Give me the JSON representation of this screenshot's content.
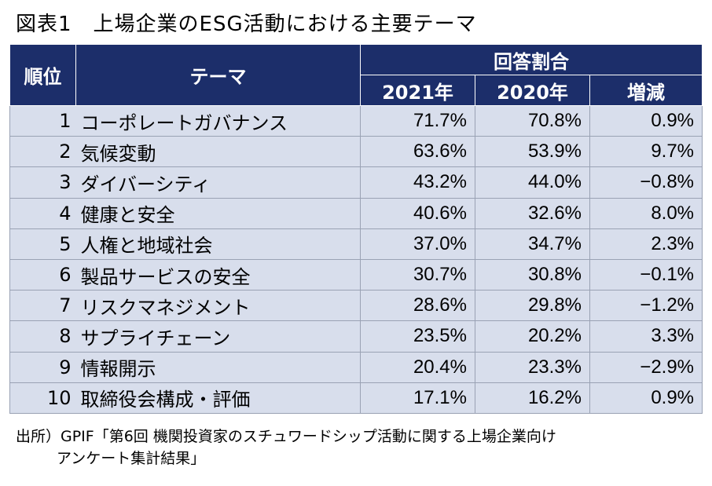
{
  "title": "図表1　上場企業のESG活動における主要テーマ",
  "table": {
    "headers": {
      "rank": "順位",
      "theme": "テーマ",
      "group": "回答割合",
      "col_2021": "2021年",
      "col_2020": "2020年",
      "col_diff": "増減"
    },
    "rows": [
      {
        "rank": "1",
        "theme": "コーポレートガバナンス",
        "v2021": "71.7%",
        "v2020": "70.8%",
        "diff": "0.9%"
      },
      {
        "rank": "2",
        "theme": "気候変動",
        "v2021": "63.6%",
        "v2020": "53.9%",
        "diff": "9.7%"
      },
      {
        "rank": "3",
        "theme": "ダイバーシティ",
        "v2021": "43.2%",
        "v2020": "44.0%",
        "diff": "−0.8%"
      },
      {
        "rank": "4",
        "theme": "健康と安全",
        "v2021": "40.6%",
        "v2020": "32.6%",
        "diff": "8.0%"
      },
      {
        "rank": "5",
        "theme": "人権と地域社会",
        "v2021": "37.0%",
        "v2020": "34.7%",
        "diff": "2.3%"
      },
      {
        "rank": "6",
        "theme": "製品サービスの安全",
        "v2021": "30.7%",
        "v2020": "30.8%",
        "diff": "−0.1%"
      },
      {
        "rank": "7",
        "theme": "リスクマネジメント",
        "v2021": "28.6%",
        "v2020": "29.8%",
        "diff": "−1.2%"
      },
      {
        "rank": "8",
        "theme": "サプライチェーン",
        "v2021": "23.5%",
        "v2020": "20.2%",
        "diff": "3.3%"
      },
      {
        "rank": "9",
        "theme": "情報開示",
        "v2021": "20.4%",
        "v2020": "23.3%",
        "diff": "−2.9%"
      },
      {
        "rank": "10",
        "theme": "取締役会構成・評価",
        "v2021": "17.1%",
        "v2020": "16.2%",
        "diff": "0.9%"
      }
    ]
  },
  "source": {
    "line1": "出所）GPIF「第6回 機関投資家のスチュワードシップ活動に関する上場企業向け",
    "line2": "アンケート集計結果」"
  }
}
